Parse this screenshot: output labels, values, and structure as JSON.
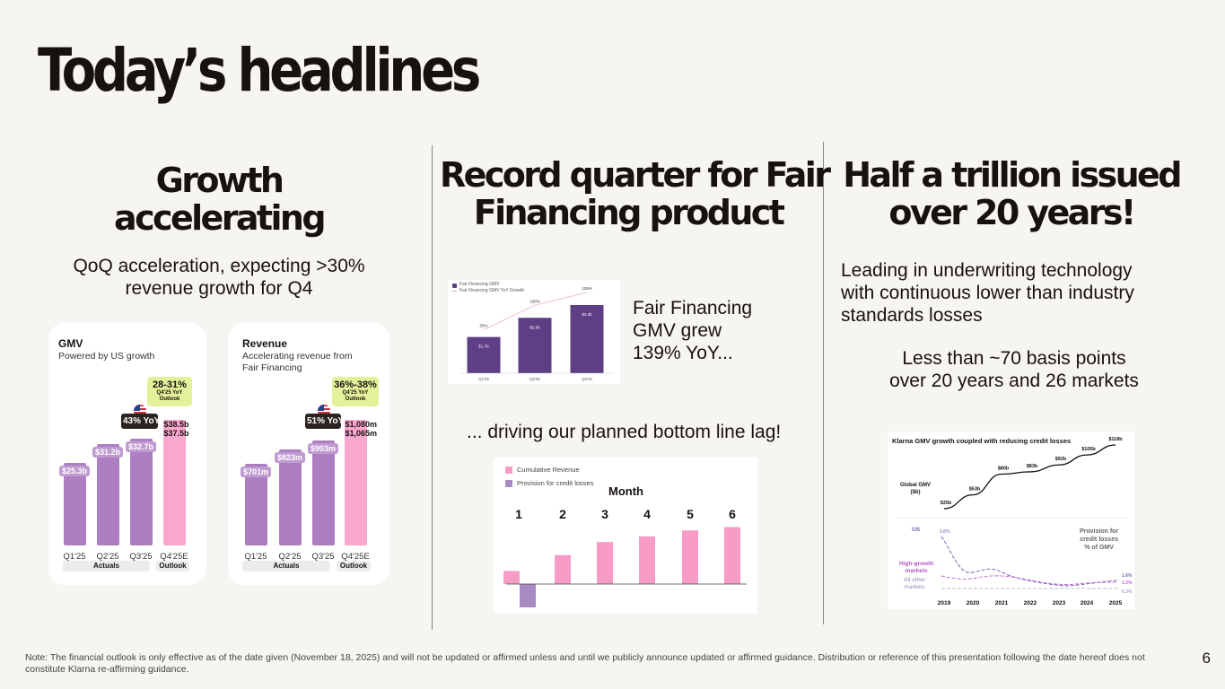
{
  "title": "Today’s headlines",
  "col1": {
    "head": [
      "Growth",
      "accelerating"
    ],
    "sub": [
      "QoQ acceleration, expecting >30%",
      "revenue growth for Q4"
    ],
    "gmv": {
      "title": "GMV",
      "subtitle": "Powered by US growth",
      "bars": [
        {
          "x": "Q1'25",
          "value": 25.3,
          "label": "$25.3b"
        },
        {
          "x": "Q2'25",
          "value": 31.2,
          "label": "$31.2b"
        },
        {
          "x": "Q3'25",
          "value": 32.7,
          "label": "$32.7b"
        },
        {
          "x": "Q4'25E",
          "value": 38.5,
          "label": "$38.5b",
          "label2": "$37.5b",
          "outlook": true
        }
      ],
      "yoy": "43% YoY",
      "outlook_range": "28-31%",
      "outlook_caption": [
        "Q4'25 YoY",
        "Outlook"
      ],
      "groups": {
        "actuals": "Actuals",
        "outlook": "Outlook"
      }
    },
    "revenue": {
      "title": "Revenue",
      "subtitle": [
        "Accelerating revenue from",
        "Fair Financing"
      ],
      "bars": [
        {
          "x": "Q1'25",
          "value": 701,
          "label": "$701m"
        },
        {
          "x": "Q2'25",
          "value": 823,
          "label": "$823m"
        },
        {
          "x": "Q3'25",
          "value": 903,
          "label": "$903m"
        },
        {
          "x": "Q4'25E",
          "value": 1080,
          "label": "$1,080m",
          "label2": "$1,065m",
          "outlook": true
        }
      ],
      "yoy": "51% YoY",
      "outlook_range": "36%-38%",
      "outlook_caption": [
        "Q4'25 YoY",
        "Outlook"
      ],
      "groups": {
        "actuals": "Actuals",
        "outlook": "Outlook"
      }
    }
  },
  "col2": {
    "head": [
      "Record quarter for Fair",
      "Financing product"
    ],
    "gmv_text": [
      "Fair Financing",
      "GMV grew",
      "139% YoY..."
    ],
    "lag_text": "... driving our planned bottom line lag!",
    "mini": {
      "legend": [
        "Fair Financing GMV",
        "Fair Financing GMV YoY Growth"
      ],
      "bars": [
        {
          "x": "Q1'25",
          "value": 1.7,
          "label": "$1.7b",
          "growth": "55%"
        },
        {
          "x": "Q2'25",
          "value": 2.6,
          "label": "$2.6b",
          "growth": "108%"
        },
        {
          "x": "Q3'25",
          "value": 3.2,
          "label": "$3.2b",
          "growth": "139%"
        }
      ]
    },
    "lag": {
      "legend": [
        "Cumulative Revenue",
        "Provision for credit losses"
      ],
      "axis_title": "Month",
      "months": [
        "1",
        "2",
        "3",
        "4",
        "5",
        "6"
      ],
      "revenue_relative": [
        0.28,
        0.62,
        0.9,
        1.02,
        1.15,
        1.22
      ],
      "provision_relative": [
        -0.5
      ],
      "colors": {
        "revenue": "#f79bc7",
        "provision": "#a88bc3"
      }
    }
  },
  "col3": {
    "head": [
      "Half a trillion issued",
      "over 20 years!"
    ],
    "sub1": [
      "Leading in underwriting technology",
      "with continuous lower than industry",
      "standards losses"
    ],
    "sub2": [
      "Less than ~70 basis points",
      "over 20 years and 26 markets"
    ],
    "chart": {
      "title": "Klarna GMV growth coupled with reducing credit losses",
      "gmv_label": [
        "Global GMV",
        "($b)"
      ],
      "gmv_points": [
        {
          "x": "2019",
          "label": "$35b"
        },
        {
          "x": "2020",
          "label": "$53b"
        },
        {
          "x": "2021",
          "label": "$80b"
        },
        {
          "x": "2022",
          "label": "$83b"
        },
        {
          "x": "2023",
          "label": "$92b"
        },
        {
          "x": "2024",
          "label": "$105b"
        },
        {
          "x": "2025",
          "label": "$118b"
        }
      ],
      "gmv_values": [
        35,
        53,
        80,
        83,
        92,
        105,
        118
      ],
      "years": [
        "2019",
        "2020",
        "2021",
        "2022",
        "2023",
        "2024",
        "2025"
      ],
      "series_labels": {
        "us": "US",
        "high_growth": [
          "High-growth",
          "markets"
        ],
        "other": [
          "All other",
          "markets"
        ]
      },
      "right_label": [
        "Provision for",
        "credit losses",
        "% of GMV"
      ],
      "us_start": "9.8%",
      "end_labels": [
        "1.6%",
        "1.3%",
        "0.3%"
      ]
    }
  },
  "note": "Note: The financial outlook is only effective as of the date given (November 18, 2025) and will not be updated or affirmed unless and until we publicly announce updated or affirmed guidance. Distribution or reference of this presentation following the date hereof does not constitute Klarna re-affirming guidance.",
  "page_number": "6",
  "colors": {
    "purple": "#ad7fc2",
    "pink": "#f9a7cf",
    "dark_purple": "#5e3f86",
    "lime": "#e4f19a"
  }
}
